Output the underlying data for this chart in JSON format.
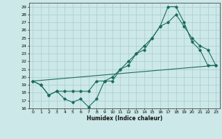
{
  "xlabel": "Humidex (Indice chaleur)",
  "background_color": "#cce8e8",
  "grid_color": "#aacccc",
  "line_color": "#1a6b5a",
  "xlim": [
    -0.5,
    23.5
  ],
  "ylim": [
    16,
    29.5
  ],
  "yticks": [
    16,
    17,
    18,
    19,
    20,
    21,
    22,
    23,
    24,
    25,
    26,
    27,
    28,
    29
  ],
  "xticks": [
    0,
    1,
    2,
    3,
    4,
    5,
    6,
    7,
    8,
    9,
    10,
    11,
    12,
    13,
    14,
    15,
    16,
    17,
    18,
    19,
    20,
    21,
    22,
    23
  ],
  "series1_x": [
    0,
    1,
    2,
    3,
    4,
    5,
    6,
    7,
    8,
    9,
    10,
    11,
    12,
    13,
    14,
    15,
    16,
    17,
    18,
    19,
    20,
    21,
    22,
    23
  ],
  "series1_y": [
    19.5,
    19.0,
    17.7,
    18.2,
    17.2,
    16.8,
    17.2,
    16.2,
    17.2,
    19.5,
    19.5,
    21.0,
    21.5,
    23.0,
    23.5,
    25.0,
    26.5,
    29.0,
    29.0,
    27.0,
    24.5,
    23.5,
    21.5,
    21.5
  ],
  "series2_x": [
    0,
    1,
    2,
    3,
    4,
    5,
    6,
    7,
    8,
    9,
    10,
    11,
    12,
    13,
    14,
    15,
    16,
    17,
    18,
    19,
    20,
    21,
    22,
    23
  ],
  "series2_y": [
    19.5,
    19.0,
    17.7,
    18.2,
    18.2,
    18.2,
    18.2,
    18.2,
    19.5,
    19.5,
    20.0,
    21.0,
    22.0,
    23.0,
    24.0,
    25.0,
    26.5,
    27.0,
    28.0,
    26.5,
    25.0,
    24.0,
    23.5,
    21.5
  ],
  "series3_x": [
    0,
    23
  ],
  "series3_y": [
    19.5,
    21.5
  ]
}
